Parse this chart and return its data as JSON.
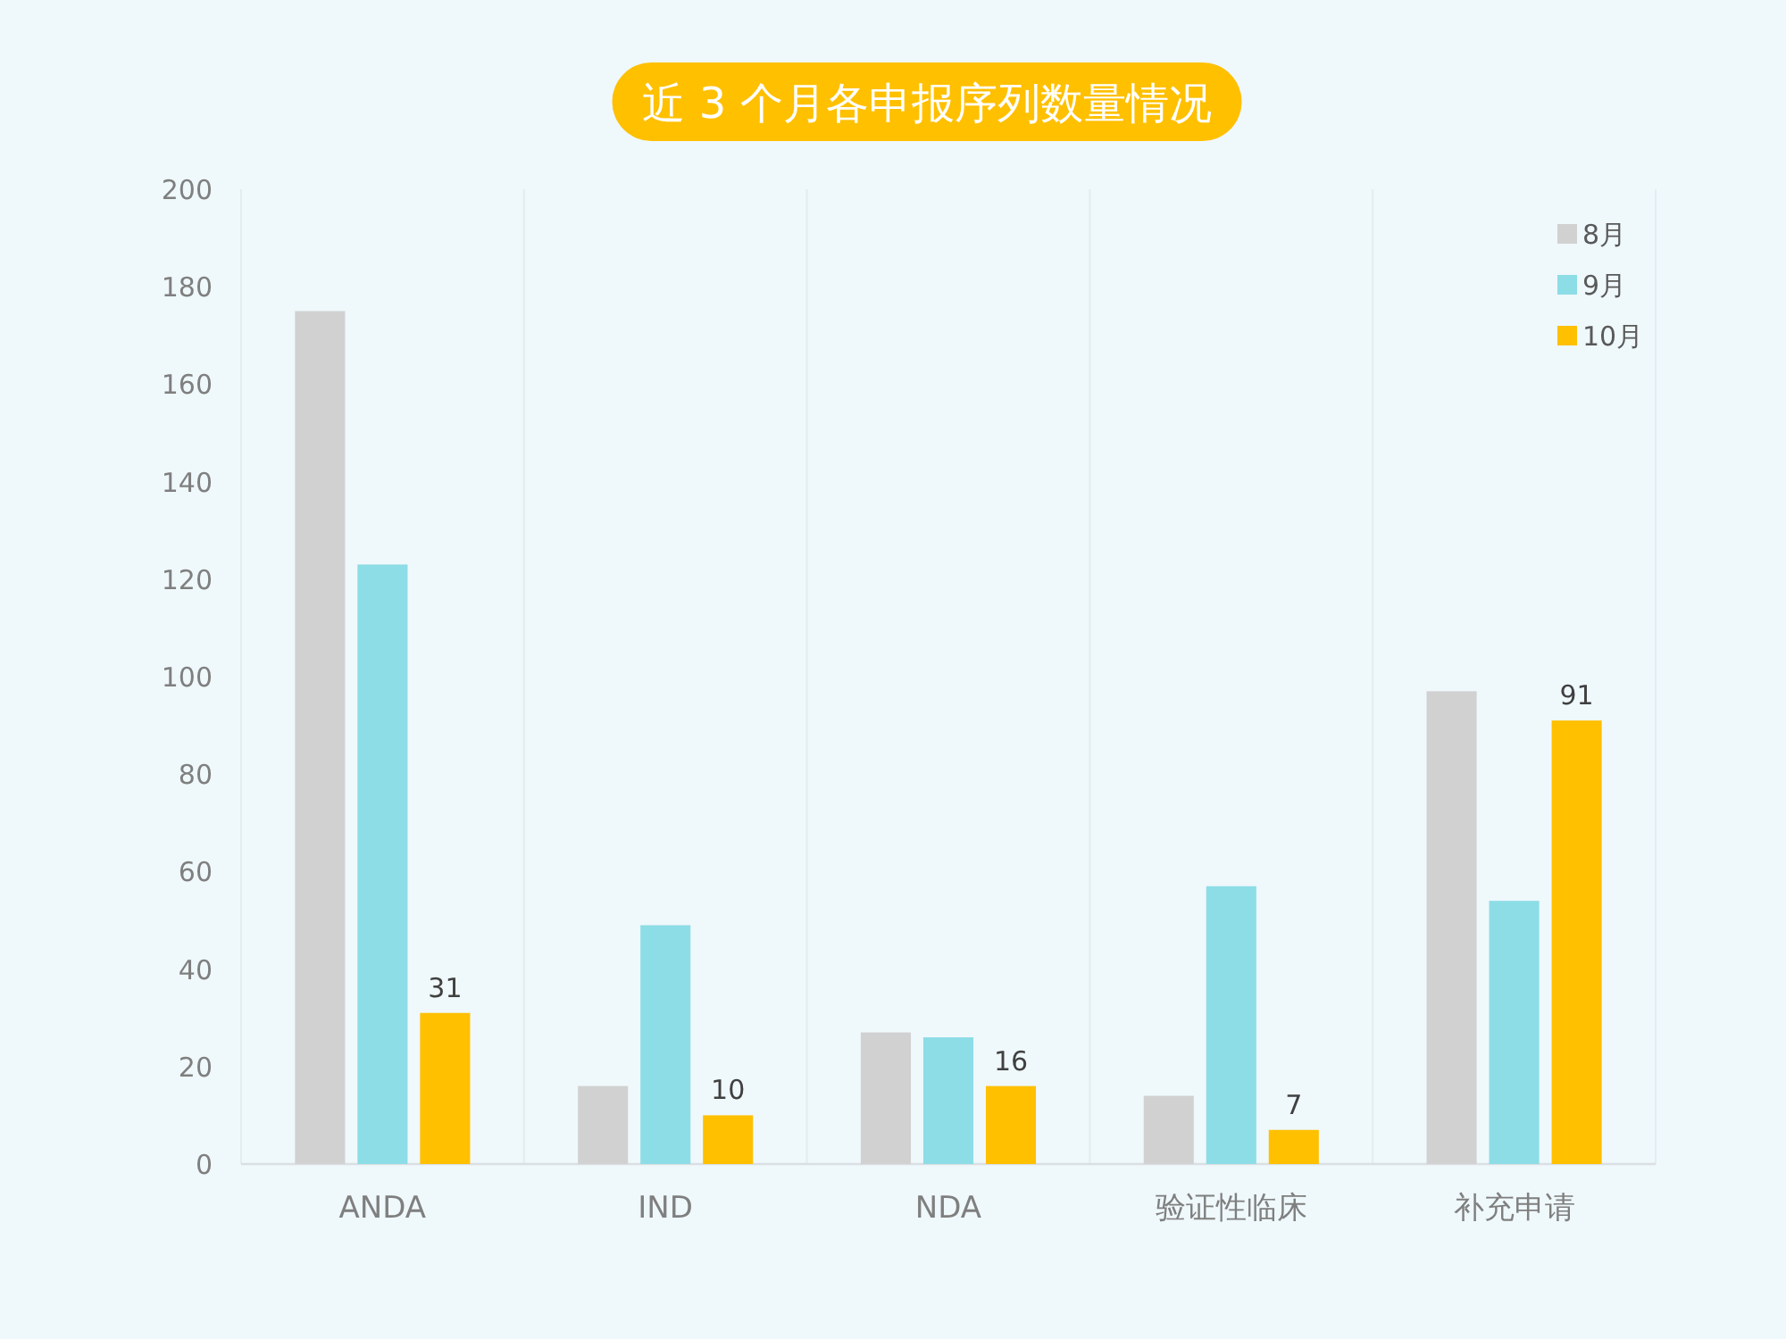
{
  "chart_data": {
    "type": "bar",
    "title": "近 3 个月各申报序列数量情况",
    "categories": [
      "ANDA",
      "IND",
      "NDA",
      "验证性临床",
      "补充申请"
    ],
    "series": [
      {
        "name": "8月",
        "color": "#d1d1d1",
        "values": [
          175,
          16,
          27,
          14,
          97
        ]
      },
      {
        "name": "9月",
        "color": "#8cdde6",
        "values": [
          123,
          49,
          26,
          57,
          54
        ]
      },
      {
        "name": "10月",
        "color": "#ffc000",
        "values": [
          31,
          10,
          16,
          7,
          91
        ],
        "value_labels": [
          "31",
          "10",
          "16",
          "7",
          "91"
        ]
      }
    ],
    "ylim": [
      0,
      200
    ],
    "yticks": [
      0,
      20,
      40,
      60,
      80,
      100,
      120,
      140,
      160,
      180,
      200
    ],
    "grid": "x",
    "legend": "top right"
  }
}
